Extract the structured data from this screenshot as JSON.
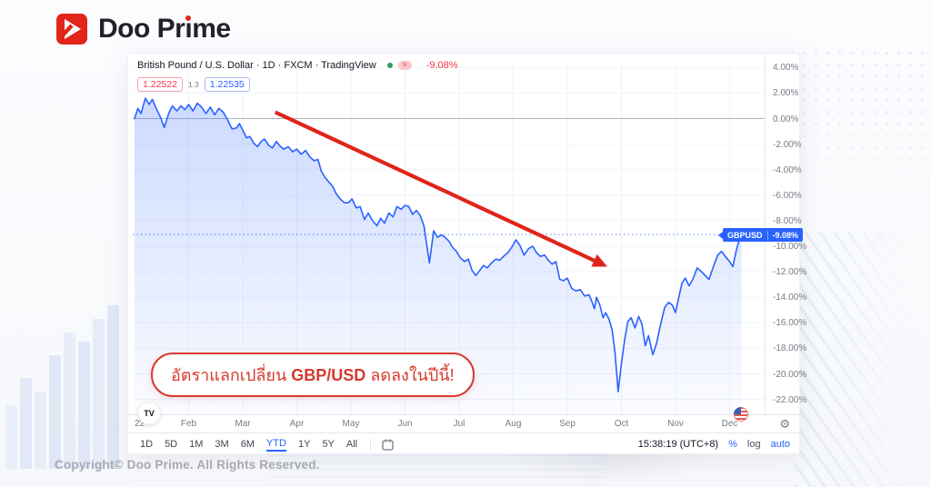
{
  "brand": {
    "name": "Doo Prime",
    "name_pre": "Doo Pr",
    "name_i": "ı",
    "name_post": "me",
    "accent": "#e1251b"
  },
  "chart": {
    "header": {
      "title": "British Pound / U.S. Dollar · 1D · FXCM · TradingView",
      "change": "-9.08%"
    },
    "quote": {
      "bid": "1.22522",
      "spread": "1.3",
      "ask": "1.22535"
    },
    "badge": {
      "symbol": "GBPUSD",
      "value": "-9.08%"
    },
    "tv_logo": "TV",
    "gear_icon": "⚙"
  },
  "chart_data": {
    "type": "area",
    "title": "British Pound / U.S. Dollar · 1D · FXCM · TradingView",
    "symbol": "GBPUSD",
    "interval": "1D",
    "exchange": "FXCM",
    "x_unit": "months since Jan 2022 (0 = Jan, 11 = Dec)",
    "y_unit": "percent change YTD",
    "ylim": [
      4.6,
      -23.4
    ],
    "grid": true,
    "zero_line_pct": 0,
    "price_line_pct": -9.08,
    "line_color": "#2962ff",
    "arrow": {
      "from": [
        2.6,
        0.5
      ],
      "to": [
        8.74,
        -11.6
      ],
      "color": "#e0241b"
    },
    "x_ticks": [
      {
        "m": 0,
        "label": "22"
      },
      {
        "m": 1,
        "label": "Feb"
      },
      {
        "m": 2,
        "label": "Mar"
      },
      {
        "m": 3,
        "label": "Apr"
      },
      {
        "m": 4,
        "label": "May"
      },
      {
        "m": 5,
        "label": "Jun"
      },
      {
        "m": 6,
        "label": "Jul"
      },
      {
        "m": 7,
        "label": "Aug"
      },
      {
        "m": 8,
        "label": "Sep"
      },
      {
        "m": 9,
        "label": "Oct"
      },
      {
        "m": 10,
        "label": "Nov"
      },
      {
        "m": 11,
        "label": "Dec"
      }
    ],
    "y_ticks": [
      {
        "v": 4,
        "label": "4.00%"
      },
      {
        "v": 2,
        "label": "2.00%"
      },
      {
        "v": 0,
        "label": "0.00%"
      },
      {
        "v": -2,
        "label": "-2.00%"
      },
      {
        "v": -4,
        "label": "-4.00%"
      },
      {
        "v": -6,
        "label": "-6.00%"
      },
      {
        "v": -8,
        "label": "-8.00%"
      },
      {
        "v": -10,
        "label": "-10.00%"
      },
      {
        "v": -12,
        "label": "-12.00%"
      },
      {
        "v": -14,
        "label": "-14.00%"
      },
      {
        "v": -16,
        "label": "-16.00%"
      },
      {
        "v": -18,
        "label": "-18.00%"
      },
      {
        "v": -20,
        "label": "-20.00%"
      },
      {
        "v": -22,
        "label": "-22.00%"
      }
    ],
    "series": [
      {
        "name": "GBP/USD YTD % change",
        "points": [
          [
            0.0,
            0.0
          ],
          [
            0.06,
            0.8
          ],
          [
            0.12,
            0.4
          ],
          [
            0.2,
            1.6
          ],
          [
            0.27,
            1.1
          ],
          [
            0.33,
            1.5
          ],
          [
            0.4,
            0.8
          ],
          [
            0.48,
            0.1
          ],
          [
            0.55,
            -0.7
          ],
          [
            0.63,
            0.4
          ],
          [
            0.7,
            1.0
          ],
          [
            0.78,
            0.6
          ],
          [
            0.86,
            1.0
          ],
          [
            0.93,
            0.7
          ],
          [
            1.0,
            1.1
          ],
          [
            1.08,
            0.6
          ],
          [
            1.16,
            1.2
          ],
          [
            1.24,
            0.9
          ],
          [
            1.32,
            0.4
          ],
          [
            1.4,
            0.9
          ],
          [
            1.48,
            0.3
          ],
          [
            1.56,
            0.8
          ],
          [
            1.64,
            0.5
          ],
          [
            1.72,
            -0.1
          ],
          [
            1.8,
            -0.8
          ],
          [
            1.88,
            -0.75
          ],
          [
            1.94,
            -0.4
          ],
          [
            2.0,
            -0.9
          ],
          [
            2.07,
            -1.5
          ],
          [
            2.13,
            -1.4
          ],
          [
            2.2,
            -1.9
          ],
          [
            2.27,
            -2.2
          ],
          [
            2.34,
            -1.8
          ],
          [
            2.4,
            -1.6
          ],
          [
            2.48,
            -2.1
          ],
          [
            2.55,
            -2.3
          ],
          [
            2.62,
            -1.8
          ],
          [
            2.7,
            -2.2
          ],
          [
            2.76,
            -2.4
          ],
          [
            2.84,
            -2.2
          ],
          [
            2.92,
            -2.6
          ],
          [
            3.0,
            -2.4
          ],
          [
            3.08,
            -2.8
          ],
          [
            3.16,
            -2.5
          ],
          [
            3.24,
            -3.0
          ],
          [
            3.32,
            -3.3
          ],
          [
            3.39,
            -3.2
          ],
          [
            3.45,
            -4.1
          ],
          [
            3.52,
            -4.6
          ],
          [
            3.6,
            -5.0
          ],
          [
            3.66,
            -5.3
          ],
          [
            3.73,
            -5.9
          ],
          [
            3.8,
            -6.3
          ],
          [
            3.88,
            -6.6
          ],
          [
            3.95,
            -6.6
          ],
          [
            4.02,
            -6.3
          ],
          [
            4.1,
            -7.0
          ],
          [
            4.17,
            -6.9
          ],
          [
            4.25,
            -7.9
          ],
          [
            4.32,
            -7.4
          ],
          [
            4.4,
            -8.0
          ],
          [
            4.48,
            -8.4
          ],
          [
            4.55,
            -7.8
          ],
          [
            4.62,
            -8.2
          ],
          [
            4.7,
            -7.4
          ],
          [
            4.78,
            -7.7
          ],
          [
            4.85,
            -6.9
          ],
          [
            4.93,
            -7.1
          ],
          [
            5.0,
            -6.8
          ],
          [
            5.07,
            -6.9
          ],
          [
            5.14,
            -7.5
          ],
          [
            5.21,
            -7.2
          ],
          [
            5.28,
            -7.6
          ],
          [
            5.35,
            -8.4
          ],
          [
            5.45,
            -11.3
          ],
          [
            5.53,
            -8.8
          ],
          [
            5.6,
            -9.3
          ],
          [
            5.67,
            -9.1
          ],
          [
            5.74,
            -9.3
          ],
          [
            5.81,
            -9.6
          ],
          [
            5.88,
            -10.1
          ],
          [
            5.95,
            -10.4
          ],
          [
            6.02,
            -10.9
          ],
          [
            6.1,
            -11.2
          ],
          [
            6.17,
            -11.0
          ],
          [
            6.24,
            -11.9
          ],
          [
            6.31,
            -12.3
          ],
          [
            6.38,
            -11.9
          ],
          [
            6.45,
            -11.5
          ],
          [
            6.52,
            -11.7
          ],
          [
            6.6,
            -11.3
          ],
          [
            6.68,
            -11.0
          ],
          [
            6.75,
            -11.1
          ],
          [
            6.82,
            -10.8
          ],
          [
            6.9,
            -10.5
          ],
          [
            6.97,
            -10.1
          ],
          [
            7.05,
            -9.5
          ],
          [
            7.12,
            -9.9
          ],
          [
            7.2,
            -10.7
          ],
          [
            7.28,
            -10.2
          ],
          [
            7.36,
            -10.0
          ],
          [
            7.43,
            -10.5
          ],
          [
            7.5,
            -10.8
          ],
          [
            7.58,
            -10.7
          ],
          [
            7.65,
            -11.1
          ],
          [
            7.72,
            -11.4
          ],
          [
            7.79,
            -11.2
          ],
          [
            7.86,
            -12.6
          ],
          [
            7.93,
            -12.7
          ],
          [
            8.0,
            -12.5
          ],
          [
            8.08,
            -13.3
          ],
          [
            8.16,
            -13.5
          ],
          [
            8.24,
            -13.4
          ],
          [
            8.32,
            -13.9
          ],
          [
            8.4,
            -13.8
          ],
          [
            8.46,
            -14.4
          ],
          [
            8.5,
            -14.9
          ],
          [
            8.54,
            -14.0
          ],
          [
            8.6,
            -14.6
          ],
          [
            8.66,
            -15.6
          ],
          [
            8.71,
            -15.2
          ],
          [
            8.77,
            -15.7
          ],
          [
            8.83,
            -16.6
          ],
          [
            8.88,
            -18.3
          ],
          [
            8.94,
            -21.4
          ],
          [
            9.0,
            -19.2
          ],
          [
            9.06,
            -17.3
          ],
          [
            9.12,
            -15.9
          ],
          [
            9.18,
            -15.6
          ],
          [
            9.25,
            -16.4
          ],
          [
            9.32,
            -15.5
          ],
          [
            9.38,
            -16.1
          ],
          [
            9.44,
            -17.8
          ],
          [
            9.5,
            -17.0
          ],
          [
            9.58,
            -18.5
          ],
          [
            9.65,
            -17.6
          ],
          [
            9.72,
            -16.2
          ],
          [
            9.8,
            -14.8
          ],
          [
            9.87,
            -14.4
          ],
          [
            9.94,
            -14.6
          ],
          [
            10.0,
            -15.2
          ],
          [
            10.06,
            -14.0
          ],
          [
            10.12,
            -12.9
          ],
          [
            10.18,
            -12.5
          ],
          [
            10.25,
            -13.1
          ],
          [
            10.32,
            -12.6
          ],
          [
            10.4,
            -11.7
          ],
          [
            10.48,
            -12.0
          ],
          [
            10.55,
            -12.3
          ],
          [
            10.62,
            -12.6
          ],
          [
            10.7,
            -11.6
          ],
          [
            10.78,
            -10.7
          ],
          [
            10.85,
            -10.4
          ],
          [
            10.92,
            -10.8
          ],
          [
            11.0,
            -11.2
          ],
          [
            11.06,
            -11.6
          ],
          [
            11.12,
            -10.4
          ],
          [
            11.17,
            -9.6
          ],
          [
            11.22,
            -9.08
          ]
        ]
      }
    ]
  },
  "toolbar": {
    "ranges": [
      "1D",
      "5D",
      "1M",
      "3M",
      "6M",
      "YTD",
      "1Y",
      "5Y",
      "All"
    ],
    "active_range": "YTD",
    "clock": "15:38:19 (UTC+8)",
    "percent": "%",
    "log": "log",
    "auto": "auto"
  },
  "annotation": {
    "prefix": "อัตราแลกเปลี่ยน ",
    "symbol": "GBP/USD",
    "suffix": " ลดลงในปีนี้!"
  },
  "footer": {
    "copyright": "Copyright© Doo Prime. All Rights Reserved."
  }
}
